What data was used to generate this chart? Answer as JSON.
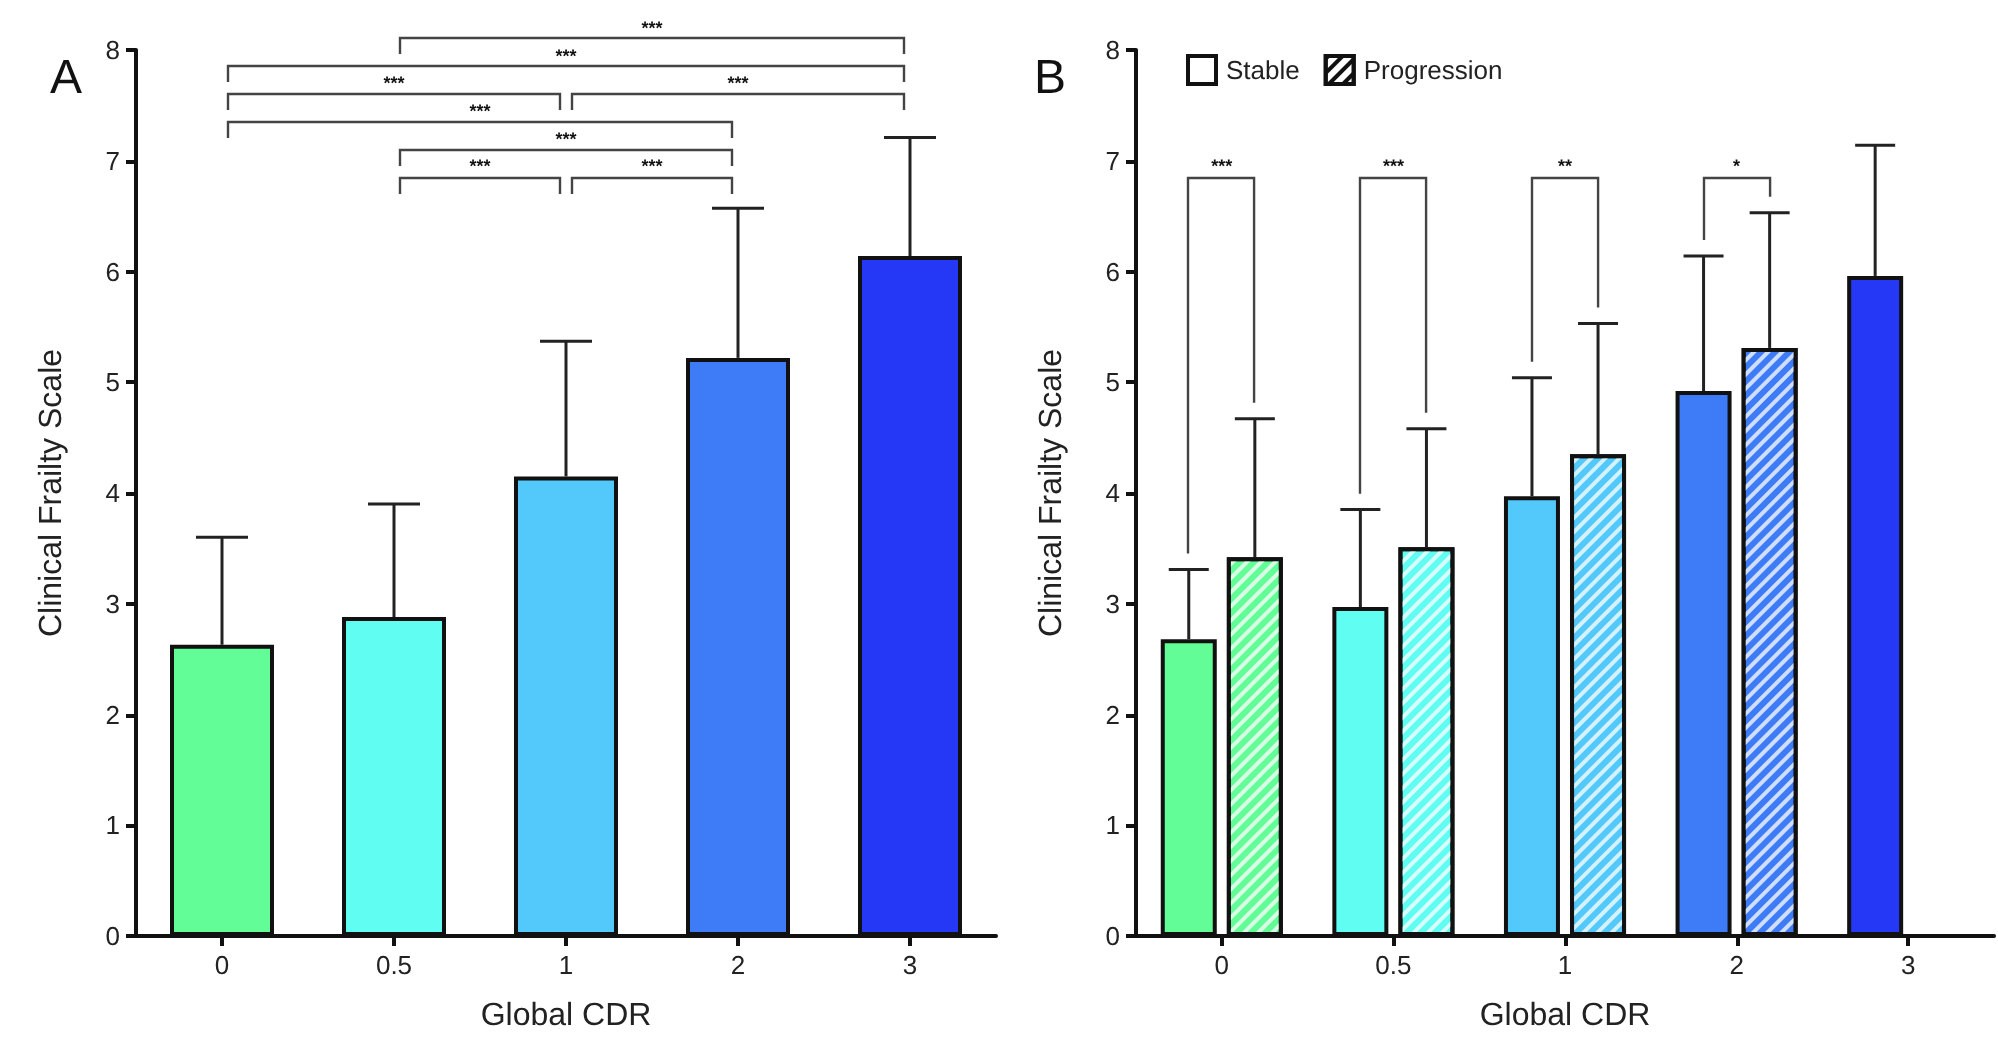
{
  "chart_data": [
    {
      "type": "bar",
      "title": "A",
      "xlabel": "Global CDR",
      "ylabel": "Clinical Frailty Scale",
      "categories": [
        "0",
        "0.5",
        "1",
        "2",
        "3"
      ],
      "series": [
        {
          "values": [
            2.63,
            2.88,
            4.15,
            5.22,
            6.14
          ],
          "colors": [
            "#62fd96",
            "#60fef2",
            "#52c8fb",
            "#3e7bf7",
            "#2438f5"
          ],
          "errors": [
            [
              2.63,
              3.6
            ],
            [
              2.88,
              3.9
            ],
            [
              4.15,
              5.37
            ],
            [
              5.22,
              6.57
            ],
            [
              6.14,
              7.21
            ]
          ]
        }
      ],
      "ylim": [
        0,
        8
      ],
      "yticks": [
        0,
        1,
        2,
        3,
        4,
        5,
        6,
        7,
        8
      ],
      "grid": false,
      "legend": false,
      "annotations": [
        "***",
        "***",
        "***",
        "***",
        "***",
        "***",
        "***",
        "***"
      ]
    },
    {
      "type": "bar",
      "title": "B",
      "xlabel": "Global CDR",
      "ylabel": "Clinical Frailty Scale",
      "categories": [
        "0",
        "0.5",
        "1",
        "2",
        "3"
      ],
      "series": [
        {
          "name": "Stable",
          "values": [
            2.68,
            2.97,
            3.97,
            4.92,
            5.96
          ],
          "colors": [
            "#62fd96",
            "#60fef2",
            "#52c8fb",
            "#3e7bf7",
            "#2438f5"
          ],
          "errors": [
            [
              2.68,
              3.31
            ],
            [
              2.97,
              3.85
            ],
            [
              3.97,
              5.04
            ],
            [
              4.92,
              6.14
            ],
            [
              5.96,
              7.14
            ]
          ]
        },
        {
          "name": "Progression",
          "values": [
            3.42,
            3.51,
            4.35,
            5.31,
            null
          ],
          "colors": [
            "#62fd96",
            "#60fef2",
            "#52c8fb",
            "#3e7bf7",
            "#2438f5"
          ],
          "errors": [
            [
              3.42,
              4.67
            ],
            [
              3.51,
              4.58
            ],
            [
              4.35,
              5.53
            ],
            [
              5.31,
              6.53
            ],
            null
          ]
        }
      ],
      "ylim": [
        0,
        8
      ],
      "yticks": [
        0,
        1,
        2,
        3,
        4,
        5,
        6,
        7,
        8
      ],
      "grid": false,
      "legend": "top left",
      "annotations": [
        "***",
        "***",
        "**",
        "*"
      ]
    }
  ]
}
